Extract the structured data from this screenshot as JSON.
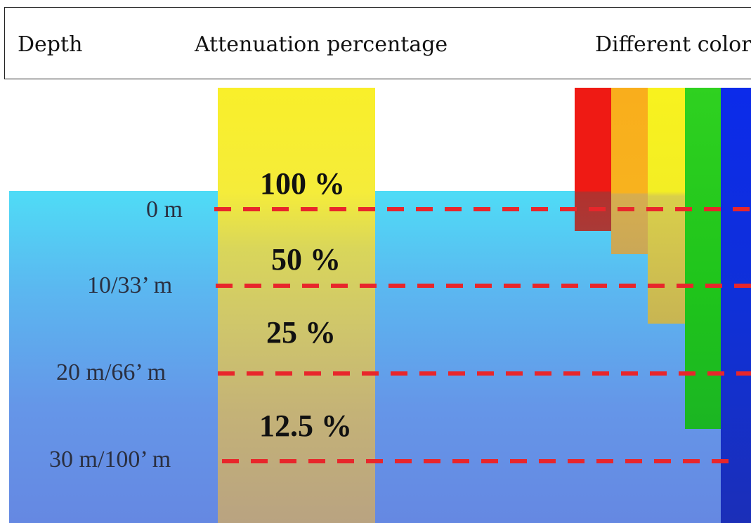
{
  "header": {
    "depth": "Depth",
    "attenuation": "Attenuation percentage",
    "color": "Different color"
  },
  "depths": [
    "0 m",
    "10/33’ m",
    "20 m/66’ m",
    "30 m/100’ m"
  ],
  "percentages": [
    "100 %",
    "50 %",
    "25 %",
    "12.5 %"
  ],
  "colors": {
    "water_top": "#4fdcf6",
    "water_bottom": "#6588e2",
    "light_column": "#f9ef2a",
    "dash": "#e8262b",
    "bars": [
      "#ef1a14",
      "#f9ae1c",
      "#f8f21e",
      "#2fd120",
      "#0c2bea"
    ]
  }
}
